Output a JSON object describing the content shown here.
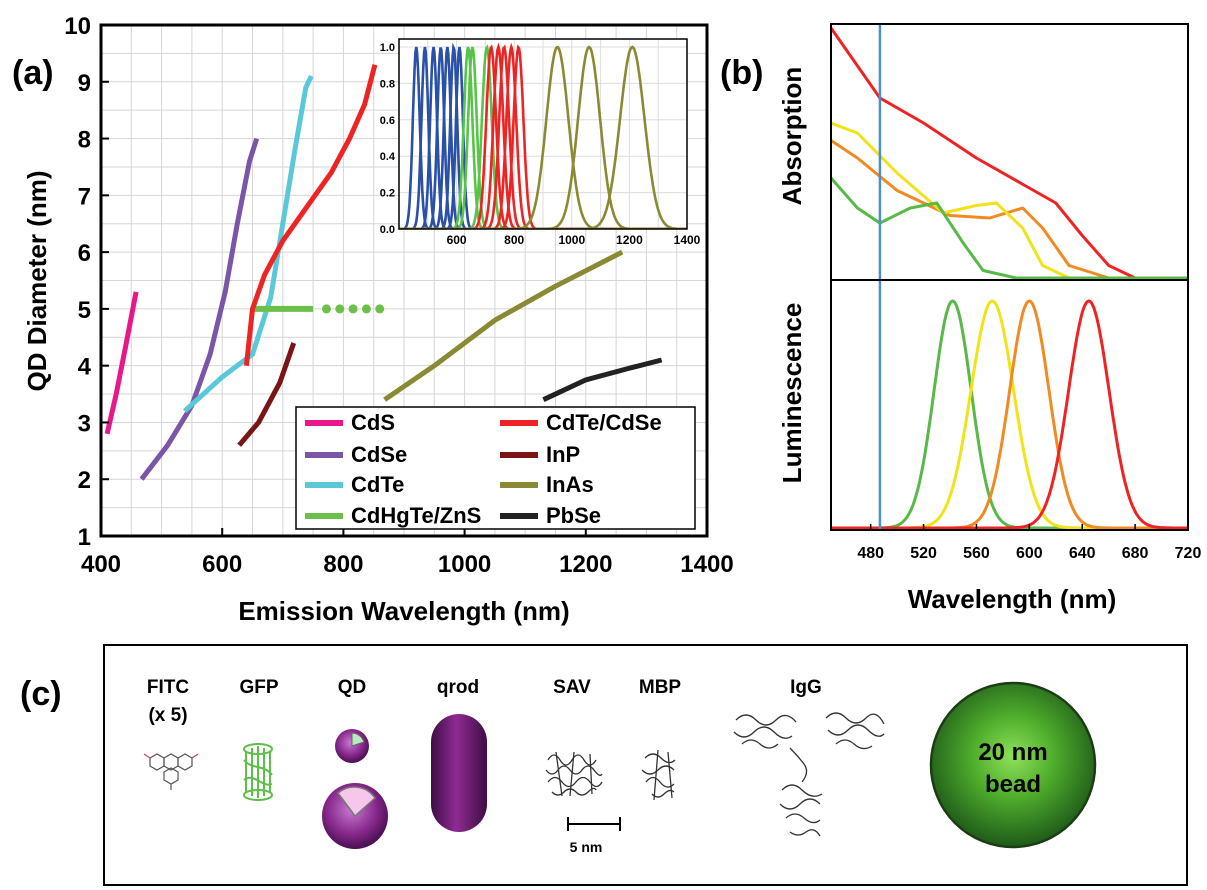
{
  "panel_labels": {
    "a": "(a)",
    "b": "(b)",
    "c": "(c)"
  },
  "chart_data": [
    {
      "type": "line",
      "panel": "(a)",
      "xlabel": "Emission Wavelength (nm)",
      "ylabel": "QD Diameter (nm)",
      "xlim": [
        400,
        1400
      ],
      "ylim": [
        1,
        10
      ],
      "xticks": [
        400,
        600,
        800,
        1000,
        1200,
        1400
      ],
      "yticks": [
        1,
        2,
        3,
        4,
        5,
        6,
        7,
        8,
        9,
        10
      ],
      "grid": true,
      "legend_position": "bottom-right",
      "series": [
        {
          "name": "CdS",
          "color": "#e8188a",
          "points": [
            [
              410,
              2.8
            ],
            [
              425,
              3.5
            ],
            [
              440,
              4.3
            ],
            [
              458,
              5.3
            ]
          ]
        },
        {
          "name": "CdSe",
          "color": "#7b55a6",
          "points": [
            [
              467,
              2.0
            ],
            [
              510,
              2.6
            ],
            [
              550,
              3.3
            ],
            [
              580,
              4.2
            ],
            [
              605,
              5.3
            ],
            [
              625,
              6.5
            ],
            [
              645,
              7.6
            ],
            [
              657,
              8.0
            ]
          ]
        },
        {
          "name": "CdTe",
          "color": "#5bc8d9",
          "points": [
            [
              538,
              3.2
            ],
            [
              600,
              3.8
            ],
            [
              650,
              4.2
            ],
            [
              680,
              5.2
            ],
            [
              700,
              6.5
            ],
            [
              720,
              7.8
            ],
            [
              738,
              8.9
            ],
            [
              747,
              9.1
            ]
          ]
        },
        {
          "name": "CdHgTe/ZnS",
          "color": "#6cc04a",
          "style": "solid-then-dotted",
          "points": [
            [
              650,
              5.0
            ],
            [
              750,
              5.0
            ],
            [
              860,
              5.0
            ]
          ]
        },
        {
          "name": "CdTe/CdSe",
          "color": "#ee2424",
          "points": [
            [
              640,
              4.0
            ],
            [
              650,
              5.0
            ],
            [
              670,
              5.6
            ],
            [
              700,
              6.2
            ],
            [
              740,
              6.8
            ],
            [
              780,
              7.4
            ],
            [
              810,
              8.0
            ],
            [
              835,
              8.6
            ],
            [
              852,
              9.3
            ]
          ]
        },
        {
          "name": "InP",
          "color": "#7a1416",
          "points": [
            [
              628,
              2.6
            ],
            [
              660,
              3.0
            ],
            [
              695,
              3.7
            ],
            [
              718,
              4.4
            ]
          ]
        },
        {
          "name": "InAs",
          "color": "#8a8a34",
          "points": [
            [
              868,
              3.4
            ],
            [
              950,
              4.0
            ],
            [
              1050,
              4.8
            ],
            [
              1150,
              5.4
            ],
            [
              1260,
              6.0
            ]
          ]
        },
        {
          "name": "PbSe",
          "color": "#222222",
          "points": [
            [
              1130,
              3.4
            ],
            [
              1200,
              3.75
            ],
            [
              1270,
              3.95
            ],
            [
              1325,
              4.1
            ]
          ]
        }
      ]
    },
    {
      "type": "line",
      "panel": "(a) inset",
      "xlim": [
        400,
        1400
      ],
      "ylim": [
        0.0,
        1.0
      ],
      "xticks": [
        600,
        800,
        1000,
        1200,
        1400
      ],
      "xtick_labels": [
        "600",
        "800",
        "1000",
        "1200",
        "1400"
      ],
      "yticks": [
        0.0,
        0.2,
        0.4,
        0.6,
        0.8,
        1.0
      ],
      "ytick_labels": [
        "0.0",
        "0.2",
        "0.4",
        "0.6",
        "0.8",
        "1.0"
      ],
      "grid": true,
      "peak_groups": [
        {
          "color": "#2a50a8",
          "peaks": [
            {
              "center": 460,
              "fwhm": 28
            },
            {
              "center": 490,
              "fwhm": 28
            },
            {
              "center": 520,
              "fwhm": 28
            },
            {
              "center": 545,
              "fwhm": 28
            },
            {
              "center": 568,
              "fwhm": 28
            },
            {
              "center": 590,
              "fwhm": 28
            },
            {
              "center": 610,
              "fwhm": 28
            }
          ]
        },
        {
          "color": "#58c44a",
          "peaks": [
            {
              "center": 640,
              "fwhm": 35
            },
            {
              "center": 655,
              "fwhm": 35
            },
            {
              "center": 705,
              "fwhm": 40
            }
          ]
        },
        {
          "color": "#ee2424",
          "peaks": [
            {
              "center": 720,
              "fwhm": 40
            },
            {
              "center": 745,
              "fwhm": 40
            },
            {
              "center": 765,
              "fwhm": 40
            },
            {
              "center": 790,
              "fwhm": 40
            },
            {
              "center": 815,
              "fwhm": 40
            }
          ]
        },
        {
          "color": "#8a8a34",
          "peaks": [
            {
              "center": 950,
              "fwhm": 90
            },
            {
              "center": 1060,
              "fwhm": 90
            },
            {
              "center": 1210,
              "fwhm": 100
            }
          ]
        }
      ]
    },
    {
      "type": "line",
      "panel": "(b)",
      "xlabel": "Wavelength (nm)",
      "ylabels": [
        "Absorption",
        "Luminescence"
      ],
      "xlim": [
        450,
        720
      ],
      "xticks": [
        480,
        520,
        560,
        600,
        640,
        680,
        720
      ],
      "excitation_line": 487,
      "excitation_color": "#4a8fd0",
      "absorption": [
        {
          "color": "#ee2424",
          "points": [
            [
              450,
              1.0
            ],
            [
              487,
              0.72
            ],
            [
              520,
              0.62
            ],
            [
              560,
              0.48
            ],
            [
              600,
              0.36
            ],
            [
              620,
              0.3
            ],
            [
              640,
              0.17
            ],
            [
              660,
              0.05
            ],
            [
              680,
              0.0
            ],
            [
              720,
              0.0
            ]
          ]
        },
        {
          "color": "#f08a22",
          "points": [
            [
              450,
              0.55
            ],
            [
              470,
              0.48
            ],
            [
              500,
              0.35
            ],
            [
              540,
              0.25
            ],
            [
              570,
              0.24
            ],
            [
              595,
              0.28
            ],
            [
              610,
              0.2
            ],
            [
              630,
              0.05
            ],
            [
              660,
              0.0
            ],
            [
              720,
              0.0
            ]
          ]
        },
        {
          "color": "#f2e21a",
          "points": [
            [
              450,
              0.62
            ],
            [
              470,
              0.58
            ],
            [
              500,
              0.42
            ],
            [
              535,
              0.26
            ],
            [
              560,
              0.29
            ],
            [
              575,
              0.3
            ],
            [
              595,
              0.2
            ],
            [
              610,
              0.05
            ],
            [
              630,
              0.0
            ],
            [
              720,
              0.0
            ]
          ]
        },
        {
          "color": "#58b848",
          "points": [
            [
              450,
              0.4
            ],
            [
              470,
              0.28
            ],
            [
              487,
              0.22
            ],
            [
              510,
              0.28
            ],
            [
              530,
              0.3
            ],
            [
              550,
              0.14
            ],
            [
              565,
              0.03
            ],
            [
              590,
              0.0
            ],
            [
              720,
              0.0
            ]
          ]
        }
      ],
      "luminescence": [
        {
          "color": "#58b848",
          "center": 542,
          "fwhm": 33
        },
        {
          "color": "#f2e21a",
          "center": 572,
          "fwhm": 38
        },
        {
          "color": "#f08a22",
          "center": 600,
          "fwhm": 35
        },
        {
          "color": "#ee2424",
          "center": 645,
          "fwhm": 36
        }
      ]
    }
  ],
  "panel_c": {
    "items": [
      {
        "label": "FITC",
        "sublabel": "(x 5)"
      },
      {
        "label": "GFP"
      },
      {
        "label": "QD"
      },
      {
        "label": "qrod"
      },
      {
        "label": "SAV"
      },
      {
        "label": "MBP"
      },
      {
        "label": "IgG"
      }
    ],
    "bead_line1": "20 nm",
    "bead_line2": "bead",
    "scale_bar_label": "5 nm"
  }
}
